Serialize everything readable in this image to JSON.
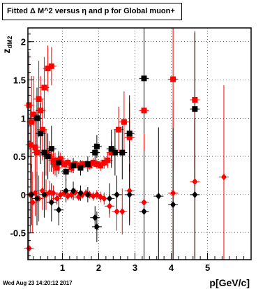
{
  "title": "Fitted Δ M^2 versus η and p for Global muon+",
  "footer": "Wed Aug 23 14:20:12 2017",
  "colors": {
    "series_a": "#ff0000",
    "series_b": "#000000",
    "grid": "#000000"
  },
  "chart_data": {
    "type": "scatter",
    "title": "Fitted Δ M^2 versus η and p for Global muon+",
    "xlabel": "p[GeV/c]",
    "ylabel": "z_dM2",
    "xlim": [
      0.05,
      6.2
    ],
    "ylim": [
      -0.85,
      2.18
    ],
    "x_ticks": [
      1,
      2,
      3,
      4,
      5
    ],
    "y_ticks": [
      -0.5,
      0,
      0.5,
      1,
      1.5,
      2
    ],
    "grid": true,
    "series": [
      {
        "marker": "square",
        "color": "#ff0000",
        "points": [
          {
            "x": 0.08,
            "y": 1.17,
            "err": 0.7
          },
          {
            "x": 0.12,
            "y": 0.65,
            "err": 0.5
          },
          {
            "x": 0.15,
            "y": 0.95,
            "err": 0.6
          },
          {
            "x": 0.2,
            "y": 1.05,
            "err": 0.5
          },
          {
            "x": 0.25,
            "y": 0.62,
            "err": 0.4
          },
          {
            "x": 0.3,
            "y": 0.55,
            "err": 0.35
          },
          {
            "x": 0.35,
            "y": 1.25,
            "err": 0.5
          },
          {
            "x": 0.4,
            "y": 1.1,
            "err": 0.45
          },
          {
            "x": 0.45,
            "y": 0.85,
            "err": 0.4
          },
          {
            "x": 0.5,
            "y": 1.4,
            "err": 0.4
          },
          {
            "x": 0.55,
            "y": 0.55,
            "err": 0.3
          },
          {
            "x": 0.6,
            "y": 1.65,
            "err": 0.3
          },
          {
            "x": 0.65,
            "y": 0.5,
            "err": 0.2
          },
          {
            "x": 0.7,
            "y": 1.68,
            "err": 0.25
          },
          {
            "x": 0.75,
            "y": 0.45,
            "err": 0.18
          },
          {
            "x": 0.8,
            "y": 0.4,
            "err": 0.15
          },
          {
            "x": 0.85,
            "y": 0.35,
            "err": 0.12
          },
          {
            "x": 0.9,
            "y": 0.45,
            "err": 0.1
          },
          {
            "x": 0.95,
            "y": 0.47,
            "err": 0.08
          },
          {
            "x": 1.05,
            "y": 0.4,
            "err": 0.06
          },
          {
            "x": 1.15,
            "y": 0.42,
            "err": 0.06
          },
          {
            "x": 1.25,
            "y": 0.35,
            "err": 0.06
          },
          {
            "x": 1.35,
            "y": 0.4,
            "err": 0.05
          },
          {
            "x": 1.45,
            "y": 0.38,
            "err": 0.05
          },
          {
            "x": 1.55,
            "y": 0.4,
            "err": 0.05
          },
          {
            "x": 1.65,
            "y": 0.4,
            "err": 0.05
          },
          {
            "x": 1.75,
            "y": 0.38,
            "err": 0.05
          },
          {
            "x": 1.85,
            "y": 0.42,
            "err": 0.06
          },
          {
            "x": 1.95,
            "y": 0.4,
            "err": 0.06
          },
          {
            "x": 2.05,
            "y": 0.38,
            "err": 0.07
          },
          {
            "x": 2.15,
            "y": 0.42,
            "err": 0.08
          },
          {
            "x": 2.25,
            "y": 0.45,
            "err": 0.1
          },
          {
            "x": 2.35,
            "y": 0.55,
            "err": 0.15
          },
          {
            "x": 2.55,
            "y": 0.85,
            "err": 0.3
          },
          {
            "x": 2.7,
            "y": 0.95,
            "err": 0.4
          },
          {
            "x": 2.85,
            "y": 0.75,
            "err": 0.45
          },
          {
            "x": 3.25,
            "y": 1.1,
            "err": 0.9
          },
          {
            "x": 4.05,
            "y": 1.51,
            "err": 1.2
          },
          {
            "x": 4.65,
            "y": 1.24,
            "err": 0.9
          }
        ]
      },
      {
        "marker": "square",
        "color": "#000000",
        "points": [
          {
            "x": 0.3,
            "y": 1.0,
            "err": 0.4
          },
          {
            "x": 0.4,
            "y": 0.8,
            "err": 0.4
          },
          {
            "x": 0.5,
            "y": 0.55,
            "err": 0.3
          },
          {
            "x": 0.6,
            "y": 0.5,
            "err": 0.3
          },
          {
            "x": 0.7,
            "y": 0.6,
            "err": 0.3
          },
          {
            "x": 0.9,
            "y": 0.42,
            "err": 0.15
          },
          {
            "x": 1.1,
            "y": 0.3,
            "err": 0.12
          },
          {
            "x": 1.3,
            "y": 0.38,
            "err": 0.1
          },
          {
            "x": 1.5,
            "y": 0.35,
            "err": 0.1
          },
          {
            "x": 1.7,
            "y": 0.4,
            "err": 0.1
          },
          {
            "x": 1.9,
            "y": 0.55,
            "err": 0.12
          },
          {
            "x": 1.95,
            "y": 0.63,
            "err": 0.15
          },
          {
            "x": 2.35,
            "y": 0.6,
            "err": 0.25
          },
          {
            "x": 2.45,
            "y": 0.55,
            "err": 0.3
          },
          {
            "x": 2.65,
            "y": 0.55,
            "err": 0.35
          },
          {
            "x": 2.85,
            "y": 0.8,
            "err": 0.5
          },
          {
            "x": 3.25,
            "y": 1.52,
            "err": 0.9
          },
          {
            "x": 4.65,
            "y": 1.12,
            "err": 1.0
          }
        ]
      },
      {
        "marker": "diamond",
        "color": "#ff0000",
        "points": [
          {
            "x": 0.08,
            "y": -0.7,
            "err": 0.6
          },
          {
            "x": 0.12,
            "y": 0.0,
            "err": 0.5
          },
          {
            "x": 0.18,
            "y": -0.1,
            "err": 0.4
          },
          {
            "x": 0.25,
            "y": 0.02,
            "err": 0.3
          },
          {
            "x": 0.35,
            "y": -0.05,
            "err": 0.3
          },
          {
            "x": 0.45,
            "y": 0.05,
            "err": 0.25
          },
          {
            "x": 0.55,
            "y": 0.0,
            "err": 0.2
          },
          {
            "x": 0.65,
            "y": 0.03,
            "err": 0.15
          },
          {
            "x": 0.75,
            "y": 0.02,
            "err": 0.1
          },
          {
            "x": 0.85,
            "y": -0.05,
            "err": 0.08
          },
          {
            "x": 0.95,
            "y": 0.0,
            "err": 0.06
          },
          {
            "x": 1.05,
            "y": 0.02,
            "err": 0.05
          },
          {
            "x": 1.15,
            "y": -0.02,
            "err": 0.05
          },
          {
            "x": 1.25,
            "y": 0.0,
            "err": 0.05
          },
          {
            "x": 1.35,
            "y": 0.03,
            "err": 0.05
          },
          {
            "x": 1.45,
            "y": -0.03,
            "err": 0.05
          },
          {
            "x": 1.55,
            "y": 0.0,
            "err": 0.05
          },
          {
            "x": 1.65,
            "y": 0.02,
            "err": 0.05
          },
          {
            "x": 1.75,
            "y": 0.0,
            "err": 0.05
          },
          {
            "x": 1.85,
            "y": -0.02,
            "err": 0.06
          },
          {
            "x": 1.95,
            "y": 0.0,
            "err": 0.06
          },
          {
            "x": 2.05,
            "y": -0.03,
            "err": 0.07
          },
          {
            "x": 2.15,
            "y": -0.05,
            "err": 0.08
          },
          {
            "x": 2.3,
            "y": -0.15,
            "err": 0.15
          },
          {
            "x": 2.5,
            "y": -0.22,
            "err": 0.25
          },
          {
            "x": 2.65,
            "y": -0.22,
            "err": 0.3
          },
          {
            "x": 2.85,
            "y": 0.05,
            "err": 0.4
          },
          {
            "x": 3.25,
            "y": -0.1,
            "err": 0.9
          },
          {
            "x": 4.05,
            "y": 0.02,
            "err": 1.2
          },
          {
            "x": 4.65,
            "y": 0.17,
            "err": 1.0
          },
          {
            "x": 5.45,
            "y": 0.23,
            "err": 1.2
          }
        ]
      },
      {
        "marker": "diamond",
        "color": "#000000",
        "points": [
          {
            "x": 0.15,
            "y": 0.0,
            "err": 0.4
          },
          {
            "x": 0.3,
            "y": -0.05,
            "err": 0.35
          },
          {
            "x": 0.5,
            "y": 0.0,
            "err": 0.3
          },
          {
            "x": 0.7,
            "y": -0.1,
            "err": 0.25
          },
          {
            "x": 0.9,
            "y": -0.2,
            "err": 0.2
          },
          {
            "x": 1.1,
            "y": 0.05,
            "err": 0.15
          },
          {
            "x": 1.3,
            "y": 0.05,
            "err": 0.12
          },
          {
            "x": 1.5,
            "y": 0.02,
            "err": 0.1
          },
          {
            "x": 1.7,
            "y": 0.0,
            "err": 0.1
          },
          {
            "x": 1.9,
            "y": -0.3,
            "err": 0.15
          },
          {
            "x": 1.95,
            "y": -0.42,
            "err": 0.2
          },
          {
            "x": 2.3,
            "y": -0.05,
            "err": 0.2
          },
          {
            "x": 2.5,
            "y": 0.0,
            "err": 0.25
          },
          {
            "x": 2.85,
            "y": 0.0,
            "err": 0.4
          },
          {
            "x": 3.25,
            "y": -0.22,
            "err": 0.8
          },
          {
            "x": 3.65,
            "y": -0.02,
            "err": 0.9
          },
          {
            "x": 4.05,
            "y": -0.13,
            "err": 1.0
          },
          {
            "x": 4.65,
            "y": 0.0,
            "err": 1.0
          }
        ]
      }
    ]
  }
}
